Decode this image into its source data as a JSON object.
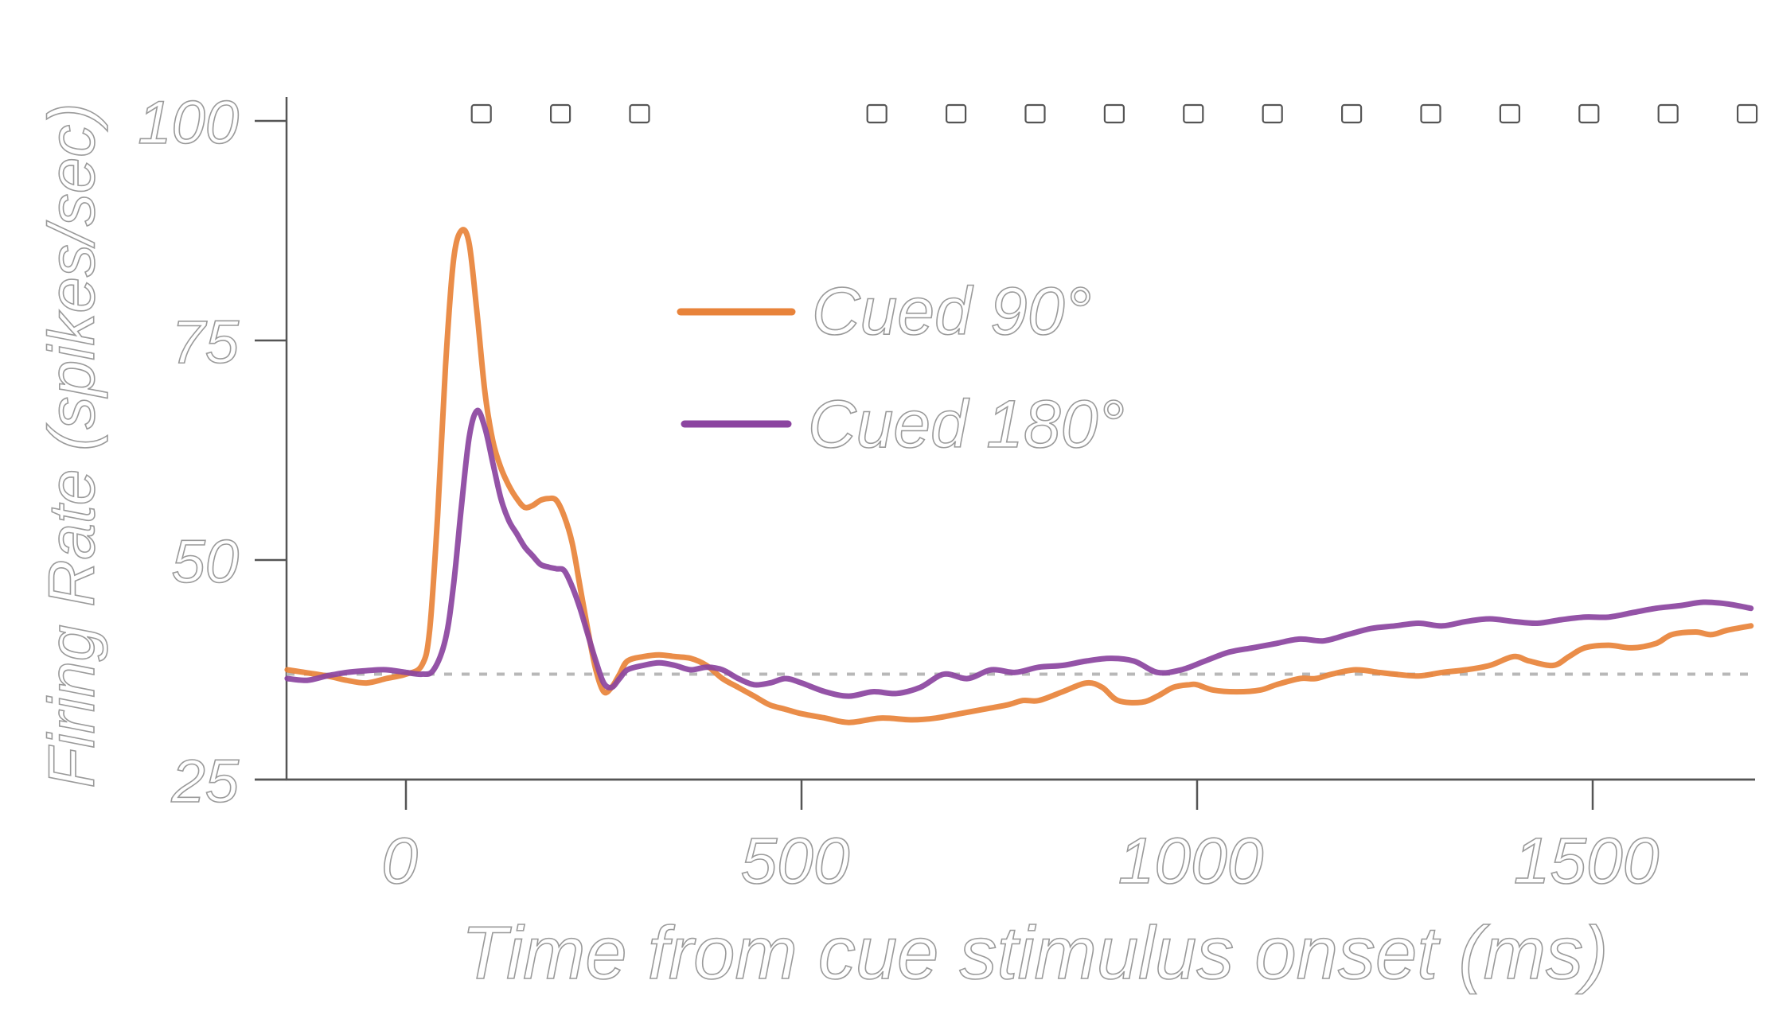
{
  "chart_data": {
    "type": "line",
    "title": "",
    "xlabel": "Time from cue stimulus onset (ms)",
    "ylabel": "Firing Rate (spikes/sec)",
    "xlim": [
      -300,
      1700
    ],
    "ylim": [
      25,
      100
    ],
    "x_ticks": [
      0,
      500,
      1000,
      1500
    ],
    "y_ticks": [
      25,
      50,
      75,
      100
    ],
    "baseline": 37,
    "legend_position": "center-top",
    "significance_markers_x": [
      50,
      150,
      250,
      550,
      650,
      750,
      850,
      950,
      1050,
      1150,
      1250,
      1350,
      1450,
      1550,
      1650
    ],
    "series": [
      {
        "name": "Cued 90°",
        "color": "#e8833a",
        "x": [
          -150,
          -100,
          -75,
          -50,
          -25,
          0,
          20,
          30,
          40,
          50,
          60,
          70,
          80,
          90,
          100,
          110,
          120,
          130,
          140,
          150,
          160,
          170,
          180,
          190,
          200,
          210,
          220,
          230,
          240,
          250,
          260,
          270,
          280,
          300,
          320,
          340,
          360,
          380,
          400,
          420,
          440,
          460,
          480,
          500,
          530,
          560,
          600,
          640,
          670,
          700,
          730,
          760,
          780,
          800,
          830,
          860,
          880,
          900,
          930,
          950,
          970,
          990,
          1000,
          1020,
          1050,
          1080,
          1100,
          1130,
          1150,
          1170,
          1200,
          1230,
          1250,
          1280,
          1310,
          1340,
          1370,
          1400,
          1420,
          1450,
          1470,
          1490,
          1520,
          1550,
          1580,
          1600,
          1630,
          1650,
          1670,
          1700
        ],
        "values": [
          37.5,
          36.8,
          36.3,
          36.0,
          36.5,
          37.0,
          38.0,
          42.0,
          55.0,
          72.0,
          84.0,
          87.5,
          86.0,
          78.0,
          69.0,
          63.5,
          60.5,
          58.5,
          57.0,
          56.0,
          56.2,
          56.8,
          57.0,
          56.8,
          55.0,
          52.0,
          47.0,
          42.0,
          37.5,
          35.0,
          35.5,
          37.0,
          38.5,
          39.0,
          39.2,
          39.0,
          38.8,
          38.0,
          36.5,
          35.5,
          34.5,
          33.5,
          33.0,
          32.5,
          32.0,
          31.5,
          32.0,
          31.8,
          32.0,
          32.5,
          33.0,
          33.5,
          34.0,
          34.0,
          35.0,
          36.0,
          35.5,
          34.0,
          33.8,
          34.5,
          35.5,
          35.8,
          35.8,
          35.2,
          35.0,
          35.2,
          35.8,
          36.5,
          36.5,
          37.0,
          37.5,
          37.2,
          37.0,
          36.8,
          37.2,
          37.5,
          38.0,
          39.0,
          38.5,
          38.0,
          39.0,
          40.0,
          40.3,
          40.0,
          40.5,
          41.5,
          41.8,
          41.5,
          42.0,
          42.5
        ]
      },
      {
        "name": "Cued 180°",
        "color": "#8b44a0",
        "x": [
          -150,
          -125,
          -100,
          -75,
          -50,
          -25,
          0,
          20,
          35,
          50,
          60,
          70,
          80,
          90,
          100,
          110,
          120,
          130,
          140,
          150,
          160,
          170,
          180,
          190,
          200,
          210,
          220,
          230,
          240,
          250,
          260,
          270,
          280,
          300,
          320,
          340,
          360,
          380,
          400,
          420,
          440,
          460,
          480,
          500,
          530,
          560,
          590,
          620,
          650,
          680,
          710,
          740,
          770,
          800,
          830,
          860,
          890,
          920,
          950,
          980,
          1010,
          1040,
          1070,
          1100,
          1130,
          1160,
          1190,
          1220,
          1250,
          1280,
          1310,
          1340,
          1370,
          1400,
          1430,
          1460,
          1490,
          1520,
          1550,
          1580,
          1610,
          1640,
          1670,
          1700
        ],
        "values": [
          36.5,
          36.3,
          36.8,
          37.2,
          37.4,
          37.5,
          37.2,
          37.0,
          37.5,
          41.0,
          47.0,
          56.0,
          64.0,
          67.0,
          65.0,
          61.0,
          57.0,
          54.5,
          53.0,
          51.5,
          50.5,
          49.5,
          49.2,
          49.0,
          48.8,
          47.0,
          44.5,
          41.5,
          38.5,
          36.0,
          35.5,
          36.5,
          37.5,
          38.0,
          38.3,
          38.0,
          37.5,
          37.8,
          37.5,
          36.5,
          35.8,
          36.0,
          36.5,
          36.0,
          35.0,
          34.5,
          35.0,
          34.8,
          35.5,
          37.0,
          36.5,
          37.5,
          37.2,
          37.8,
          38.0,
          38.5,
          38.8,
          38.5,
          37.2,
          37.5,
          38.5,
          39.5,
          40.0,
          40.5,
          41.0,
          40.8,
          41.5,
          42.2,
          42.5,
          42.8,
          42.5,
          43.0,
          43.3,
          43.0,
          42.8,
          43.2,
          43.5,
          43.5,
          44.0,
          44.5,
          44.8,
          45.2,
          45.0,
          44.5
        ]
      }
    ]
  }
}
